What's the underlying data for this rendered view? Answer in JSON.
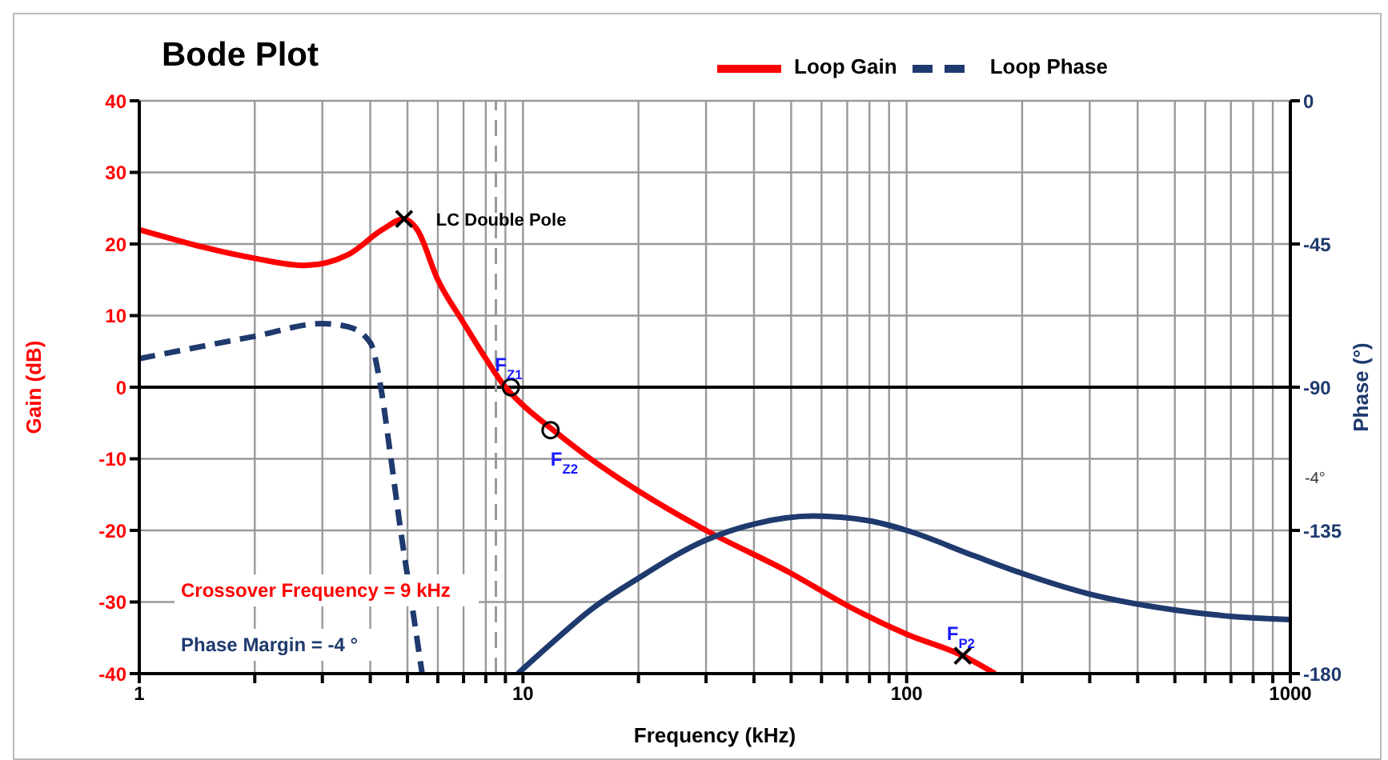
{
  "chart_data": {
    "type": "line",
    "title": "Bode Plot",
    "xlabel": "Frequency (kHz)",
    "ylabel": "Gain (dB)",
    "y2label": "Phase  (°)",
    "log": "x",
    "grid": true,
    "legend": "top",
    "xlim": [
      1,
      1000
    ],
    "ylim": [
      -40,
      40
    ],
    "y2lim": [
      -180,
      0
    ],
    "xticks": [
      1,
      {
        "value": 2,
        "label": null
      },
      {
        "value": 3,
        "label": null
      },
      {
        "value": 4,
        "label": null
      },
      {
        "value": 5,
        "label": null
      },
      {
        "value": 6,
        "label": null
      },
      {
        "value": 7,
        "label": null
      },
      {
        "value": 8,
        "label": null
      },
      {
        "value": 9,
        "label": null
      },
      10,
      {
        "value": 20,
        "label": null
      },
      {
        "value": 30,
        "label": null
      },
      {
        "value": 40,
        "label": null
      },
      {
        "value": 50,
        "label": null
      },
      {
        "value": 60,
        "label": null
      },
      {
        "value": 70,
        "label": null
      },
      {
        "value": 80,
        "label": null
      },
      {
        "value": 90,
        "label": null
      },
      100,
      {
        "value": 200,
        "label": null
      },
      {
        "value": 300,
        "label": null
      },
      {
        "value": 400,
        "label": null
      },
      {
        "value": 500,
        "label": null
      },
      {
        "value": 600,
        "label": null
      },
      {
        "value": 700,
        "label": null
      },
      {
        "value": 800,
        "label": null
      },
      {
        "value": 900,
        "label": null
      },
      1000
    ],
    "yticks": [
      -40,
      -30,
      -20,
      -10,
      0,
      10,
      20,
      30,
      40
    ],
    "y2ticks": [
      -180,
      -135,
      -90,
      -45,
      0
    ],
    "series": [
      {
        "name": "Loop Gain",
        "color": "#ff0000",
        "line_style": "solid",
        "marker": "none",
        "x": [
          1,
          2,
          2.7,
          3.5,
          4.3,
          4.9,
          5.3,
          6,
          7,
          8,
          9,
          10,
          12,
          15,
          20,
          30,
          50,
          70,
          100,
          140,
          170
        ],
        "values": [
          22,
          18,
          17,
          18.5,
          22,
          23.5,
          22,
          15,
          9,
          4,
          0,
          -2.5,
          -6,
          -10,
          -14.5,
          -20,
          -26,
          -30.5,
          -34.5,
          -37.5,
          -40
        ]
      },
      {
        "name": "Loop Phase",
        "color": "#1f3a6e",
        "axis": "y2",
        "line_style": "dashed",
        "marker": "none",
        "x": [
          1,
          2,
          3,
          3.5,
          4,
          4.26,
          4.5,
          4.8,
          5.16,
          5.46
        ],
        "values": [
          -81,
          -74,
          -70,
          -71,
          -76,
          -90,
          -110,
          -135,
          -160,
          -180
        ]
      },
      {
        "color": "#1f3a6e",
        "axis": "y2",
        "line_style": "solid",
        "marker": "none",
        "x": [
          9.7,
          12,
          15,
          20,
          30,
          40,
          57,
          80,
          100,
          150,
          200,
          300,
          500,
          700,
          1000
        ],
        "values": [
          -180,
          -170,
          -160,
          -150,
          -138,
          -133,
          -130.5,
          -132,
          -135,
          -143,
          -148.5,
          -155,
          -160,
          -162,
          -163
        ]
      },
      {
        "type": "scatter",
        "color": "#000000",
        "marker": "cross",
        "x": [
          4.9,
          140
        ],
        "values": [
          23.5,
          -37.5
        ]
      },
      {
        "type": "scatter",
        "color": "#000000",
        "marker": "circle",
        "x": [
          9.3,
          11.8
        ],
        "values": [
          0,
          -6
        ]
      }
    ],
    "ref_lines": [
      {
        "axis": "y",
        "value": 0,
        "color": "#000000",
        "line_style": "solid"
      },
      {
        "axis": "x",
        "value": 8.5,
        "color": "#999999",
        "line_style": "dashed"
      }
    ],
    "annotations": [
      {
        "text": "LC Double Pole",
        "x": 4.9,
        "y": 23.5
      },
      {
        "text": "F$_{Z1}$",
        "x": 9.3,
        "y": 0
      },
      {
        "text": "F$_{Z2}$",
        "x": 11.8,
        "y": -6
      },
      {
        "text": "F$_{P2}$",
        "x": 140,
        "y": -37.5
      },
      "Crossover Frequency = 9 kHz",
      "Phase Margin = -4 °",
      "-4°"
    ]
  }
}
